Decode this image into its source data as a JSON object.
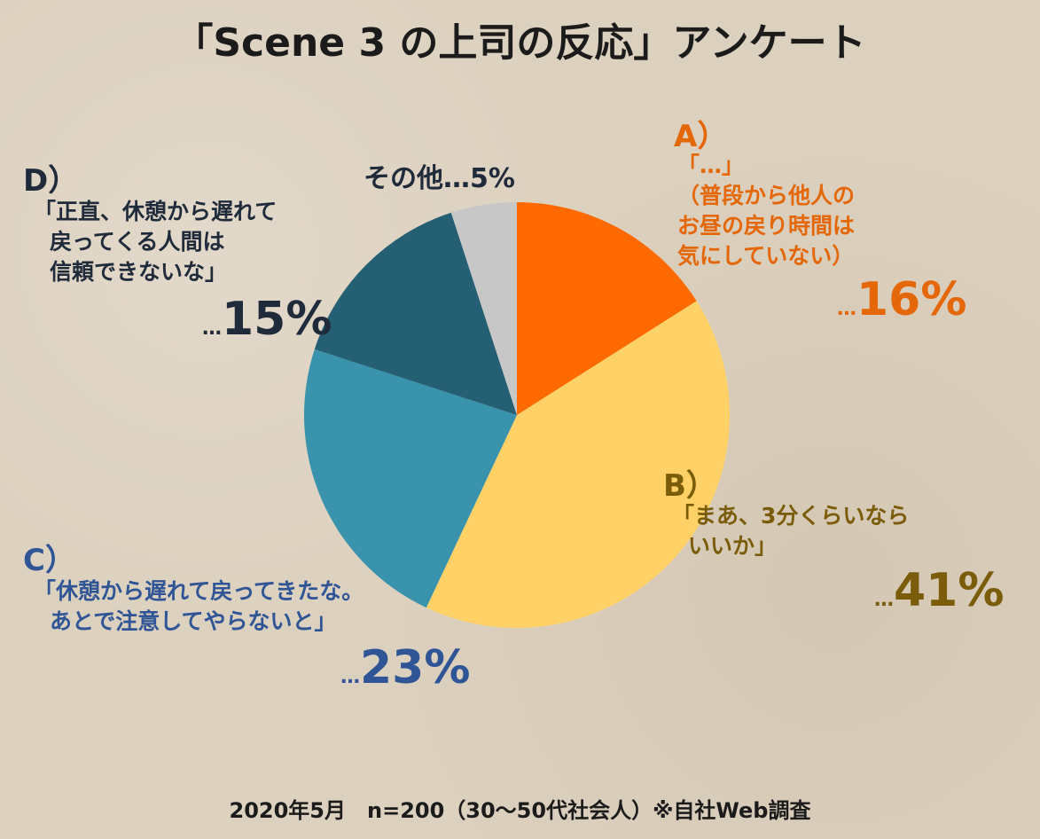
{
  "title": "「Scene 3 の上司の反応」アンケート",
  "chart_data": {
    "type": "pie",
    "title": "「Scene 3 の上司の反応」アンケート",
    "slices": [
      {
        "key": "A",
        "value": 16,
        "color": "#ff6a00"
      },
      {
        "key": "B",
        "value": 41,
        "color": "#ffd166"
      },
      {
        "key": "C",
        "value": 23,
        "color": "#3a93ad"
      },
      {
        "key": "D",
        "value": 15,
        "color": "#245f73"
      },
      {
        "key": "E",
        "value": 5,
        "color": "#c7c7c7"
      }
    ]
  },
  "labels": {
    "a": {
      "letter": "A）",
      "lines": [
        "「…」",
        "（普段から他人の",
        "お昼の戻り時間は",
        "気にしていない）"
      ],
      "dots": "…",
      "pct": "16%"
    },
    "b": {
      "letter": "B）",
      "lines": [
        "「まあ、3分くらいなら",
        "いいか」"
      ],
      "dots": "…",
      "pct": "41%"
    },
    "c": {
      "letter": "C）",
      "lines": [
        "「休憩から遅れて戻ってきたな。",
        "あとで注意してやらないと」"
      ],
      "dots": "…",
      "pct": "23%"
    },
    "d": {
      "letter": "D）",
      "lines": [
        "「正直、休憩から遅れて",
        "戻ってくる人間は",
        "信頼できないな」"
      ],
      "dots": "…",
      "pct": "15%"
    },
    "e": {
      "text": "その他…5%"
    }
  },
  "footer": "2020年5月　n=200（30〜50代社会人）※自社Web調査"
}
